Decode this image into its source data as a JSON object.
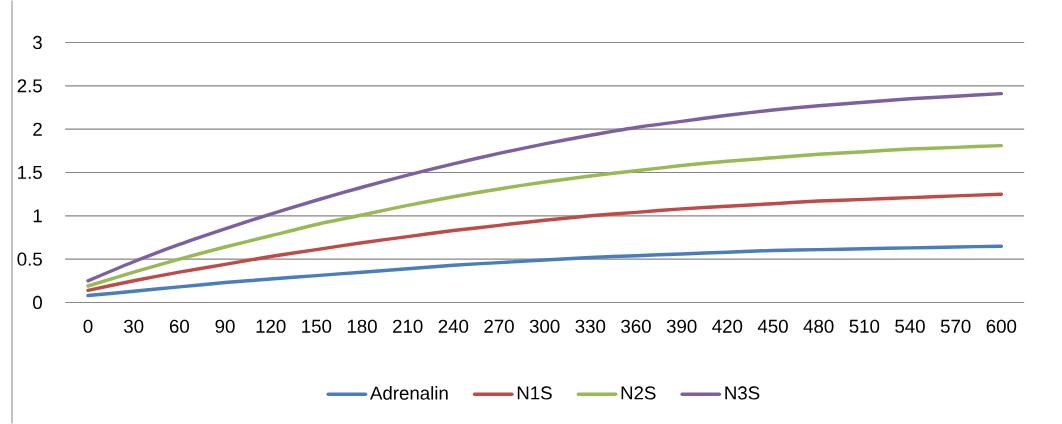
{
  "chart_data": {
    "type": "line",
    "categories": [
      "0",
      "30",
      "60",
      "90",
      "120",
      "150",
      "180",
      "210",
      "240",
      "270",
      "300",
      "330",
      "360",
      "390",
      "420",
      "450",
      "480",
      "510",
      "540",
      "570",
      "600"
    ],
    "series": [
      {
        "name": "Adrenalin",
        "color": "#4a7ebb",
        "values": [
          0.08,
          0.13,
          0.18,
          0.23,
          0.27,
          0.31,
          0.35,
          0.39,
          0.43,
          0.46,
          0.49,
          0.52,
          0.54,
          0.56,
          0.58,
          0.6,
          0.61,
          0.62,
          0.63,
          0.64,
          0.65
        ]
      },
      {
        "name": "N1S",
        "color": "#be4b48",
        "values": [
          0.14,
          0.25,
          0.35,
          0.44,
          0.53,
          0.61,
          0.69,
          0.76,
          0.83,
          0.89,
          0.95,
          1.0,
          1.04,
          1.08,
          1.11,
          1.14,
          1.17,
          1.19,
          1.21,
          1.23,
          1.25
        ]
      },
      {
        "name": "N2S",
        "color": "#98b954",
        "values": [
          0.19,
          0.35,
          0.5,
          0.64,
          0.77,
          0.9,
          1.01,
          1.12,
          1.22,
          1.31,
          1.39,
          1.46,
          1.52,
          1.58,
          1.63,
          1.67,
          1.71,
          1.74,
          1.77,
          1.79,
          1.81
        ]
      },
      {
        "name": "N3S",
        "color": "#7d60a0",
        "values": [
          0.25,
          0.47,
          0.67,
          0.85,
          1.02,
          1.18,
          1.33,
          1.47,
          1.6,
          1.72,
          1.83,
          1.93,
          2.02,
          2.09,
          2.16,
          2.22,
          2.27,
          2.31,
          2.35,
          2.38,
          2.41
        ]
      }
    ],
    "ylim": [
      0,
      3
    ],
    "yticks": [
      0,
      0.5,
      1,
      1.5,
      2,
      2.5,
      3
    ],
    "grid": "y",
    "legend": "bottom",
    "marker": "none",
    "line_style": "solid"
  }
}
